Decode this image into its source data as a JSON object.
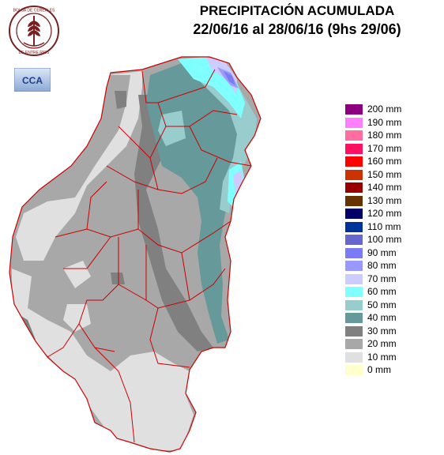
{
  "header": {
    "title": "PRECIPITACIÓN ACUMULADA",
    "subtitle": "22/06/16 al 28/06/16 (9hs 29/06)"
  },
  "logos": {
    "seal_text": "BOLSA DE CEREALES DE ENTRE RÍOS",
    "cca_text": "CCA"
  },
  "legend": {
    "items": [
      {
        "label": "200 mm",
        "color": "#8c0080"
      },
      {
        "label": "190 mm",
        "color": "#ff80ff"
      },
      {
        "label": "180 mm",
        "color": "#ff6e9e"
      },
      {
        "label": "170 mm",
        "color": "#ff1060"
      },
      {
        "label": "160 mm",
        "color": "#ff0000"
      },
      {
        "label": "150 mm",
        "color": "#cc3300"
      },
      {
        "label": "140 mm",
        "color": "#990000"
      },
      {
        "label": "130 mm",
        "color": "#663300"
      },
      {
        "label": "120 mm",
        "color": "#000066"
      },
      {
        "label": "110 mm",
        "color": "#003399"
      },
      {
        "label": "100 mm",
        "color": "#6666cc"
      },
      {
        "label": "90 mm",
        "color": "#7b7bf5"
      },
      {
        "label": "80 mm",
        "color": "#9999ff"
      },
      {
        "label": "70 mm",
        "color": "#ccccff"
      },
      {
        "label": "60 mm",
        "color": "#80ffff"
      },
      {
        "label": "50 mm",
        "color": "#99cccc"
      },
      {
        "label": "40 mm",
        "color": "#669999"
      },
      {
        "label": "30 mm",
        "color": "#808080"
      },
      {
        "label": "20 mm",
        "color": "#a8a8a8"
      },
      {
        "label": "10 mm",
        "color": "#e0e0e0"
      },
      {
        "label": "0 mm",
        "color": "#ffffcc"
      }
    ]
  }
}
